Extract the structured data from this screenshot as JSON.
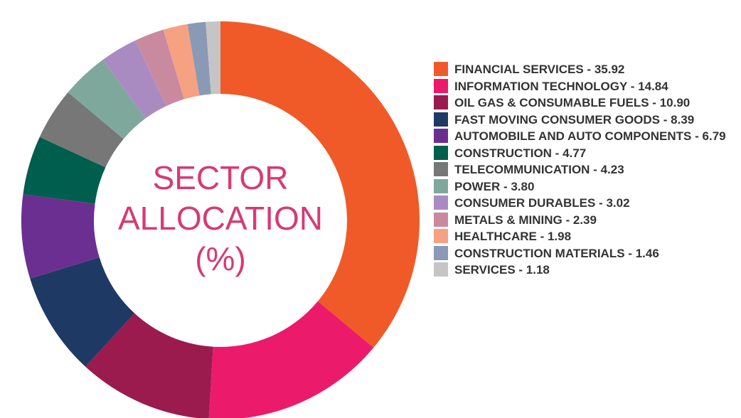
{
  "chart_data": {
    "type": "donut",
    "title": "SECTOR ALLOCATION (%)",
    "categories": [
      "FINANCIAL SERVICES -",
      "INFORMATION TECHNOLOGY -",
      "OIL GAS & CONSUMABLE FUELS -",
      "FAST MOVING CONSUMER GOODS -",
      "AUTOMOBILE AND AUTO COMPONENTS -",
      "CONSTRUCTION -",
      "TELECOMMUNICATION -",
      "POWER -",
      "CONSUMER DURABLES -",
      "METALS & MINING -",
      "HEALTHCARE -",
      "CONSTRUCTION MATERIALS -",
      "SERVICES -"
    ],
    "values": [
      35.92,
      14.84,
      10.9,
      8.39,
      6.79,
      4.77,
      4.23,
      3.8,
      3.02,
      2.39,
      1.98,
      1.46,
      1.18
    ],
    "value_labels": [
      "35.92",
      "14.84",
      "10.90",
      "8.39",
      "6.79",
      "4.77",
      "4.23",
      "3.80",
      "3.02",
      "2.39",
      "1.98",
      "1.46",
      "1.18"
    ],
    "colors": [
      "#f05a28",
      "#ec1a6b",
      "#9b1b4f",
      "#1e3a64",
      "#6b2f91",
      "#005e4f",
      "#777777",
      "#7fa89c",
      "#a98bc2",
      "#c98aa0",
      "#f5a182",
      "#8a99b5",
      "#c5c5c5"
    ],
    "legend": "right"
  }
}
